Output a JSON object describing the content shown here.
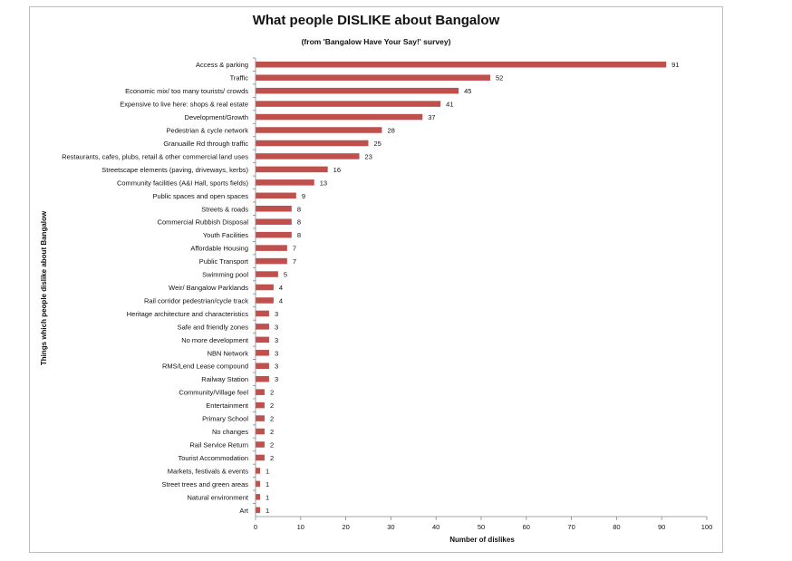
{
  "chart_data": {
    "type": "bar",
    "orientation": "horizontal",
    "title": "What people DISLIKE about Bangalow",
    "subtitle": "(from 'Bangalow Have Your Say!' survey)",
    "xlabel": "Number of dislikes",
    "ylabel": "Things which people dislike about Bangalow",
    "xlim": [
      0,
      100
    ],
    "xticks": [
      0,
      10,
      20,
      30,
      40,
      50,
      60,
      70,
      80,
      90,
      100
    ],
    "bar_color": "#c0504d",
    "grid": false,
    "legend": "none",
    "categories": [
      "Access & parking",
      "Traffic",
      "Economic mix/ too many tourists/ crowds",
      "Expensive to live here: shops & real estate",
      "Development/Growth",
      "Pedestrian & cycle network",
      "Granuaille Rd through traffic",
      "Restaurants, cafes, plubs, retail & other commercial land uses",
      "Streetscape elements (paving, driveways, kerbs)",
      "Community facilities (A&I Hall, sports fields)",
      "Public spaces and open spaces",
      "Streets & roads",
      "Commercial Rubbish Disposal",
      "Youth Facilities",
      "Affordable Housing",
      "Public Transport",
      "Swimming pool",
      "Weir/ Bangalow Parklands",
      "Rail corridor pedestrian/cycle track",
      "Heritage architecture and characteristics",
      "Safe and friendly zones",
      "No more development",
      "NBN Network",
      "RMS/Lend Lease compound",
      "Railway Station",
      "Community/Village feel",
      "Entertainment",
      "Primary School",
      "No changes",
      "Rail Service Return",
      "Tourist Accommodation",
      "Markets, festivals & events",
      "Street trees and green areas",
      "Natural environment",
      "Art"
    ],
    "values": [
      91,
      52,
      45,
      41,
      37,
      28,
      25,
      23,
      16,
      13,
      9,
      8,
      8,
      8,
      7,
      7,
      5,
      4,
      4,
      3,
      3,
      3,
      3,
      3,
      3,
      2,
      2,
      2,
      2,
      2,
      2,
      1,
      1,
      1,
      1
    ]
  }
}
